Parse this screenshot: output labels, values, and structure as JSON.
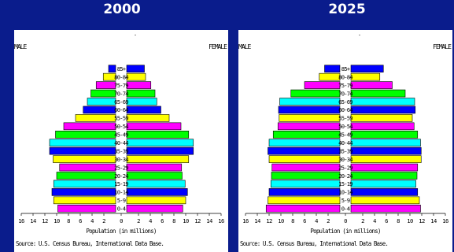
{
  "titles": {
    "left": "2000",
    "right": "2025"
  },
  "labels": {
    "male": "MALE",
    "female": "FEMALE",
    "x_title": "Population (in millions)",
    "source": "Source: U.S. Census Bureau, International Data Base."
  },
  "colors": {
    "background": "#0a1c8c",
    "panel": "#ffffff",
    "bar_cycle": [
      "#ff00ff",
      "#ffff00",
      "#0000ff",
      "#00ffff",
      "#00ff00"
    ]
  },
  "chart_data": [
    {
      "type": "bar",
      "title": "2000",
      "xlabel": "Population (in millions)",
      "xlim": [
        0,
        16
      ],
      "x_ticks": [
        16,
        14,
        12,
        10,
        8,
        6,
        4,
        2,
        0,
        2,
        4,
        6,
        8,
        10,
        12,
        14,
        16
      ],
      "categories": [
        "0-4",
        "5-9",
        "10-14",
        "15-19",
        "20-24",
        "25-29",
        "30-34",
        "35-39",
        "40-44",
        "45-49",
        "50-54",
        "55-59",
        "60-64",
        "65-69",
        "70-74",
        "75-79",
        "80-84",
        "85+"
      ],
      "series": [
        {
          "name": "MALE",
          "values": [
            9.8,
            10.5,
            10.8,
            10.5,
            10.0,
            9.5,
            10.6,
            11.2,
            11.2,
            10.2,
            8.8,
            6.8,
            5.5,
            4.8,
            4.2,
            3.3,
            2.1,
            1.2
          ]
        },
        {
          "name": "FEMALE",
          "values": [
            9.5,
            10.0,
            10.3,
            9.9,
            9.4,
            9.3,
            10.5,
            11.3,
            11.3,
            10.5,
            9.2,
            7.2,
            5.8,
            5.1,
            4.8,
            4.1,
            3.2,
            3.0
          ]
        }
      ]
    },
    {
      "type": "bar",
      "title": "2025",
      "xlabel": "Population (in millions)",
      "xlim": [
        0,
        16
      ],
      "x_ticks": [
        16,
        14,
        12,
        10,
        8,
        6,
        4,
        2,
        0,
        2,
        4,
        6,
        8,
        10,
        12,
        14,
        16
      ],
      "categories": [
        "0-4",
        "5-9",
        "10-14",
        "15-19",
        "20-24",
        "25-29",
        "30-34",
        "35-39",
        "40-44",
        "45-49",
        "50-54",
        "55-59",
        "60-64",
        "65-69",
        "70-74",
        "75-79",
        "80-84",
        "85+"
      ],
      "series": [
        {
          "name": "MALE",
          "values": [
            12.5,
            12.2,
            12.0,
            11.7,
            11.6,
            11.5,
            12.0,
            12.2,
            12.0,
            11.3,
            10.5,
            10.3,
            10.4,
            10.2,
            8.3,
            6.0,
            3.5,
            2.6
          ]
        },
        {
          "name": "FEMALE",
          "values": [
            11.8,
            11.6,
            11.3,
            11.0,
            11.2,
            11.3,
            11.9,
            11.9,
            11.8,
            11.3,
            10.7,
            10.4,
            10.9,
            10.8,
            9.2,
            7.0,
            4.9,
            5.5
          ]
        }
      ]
    }
  ]
}
